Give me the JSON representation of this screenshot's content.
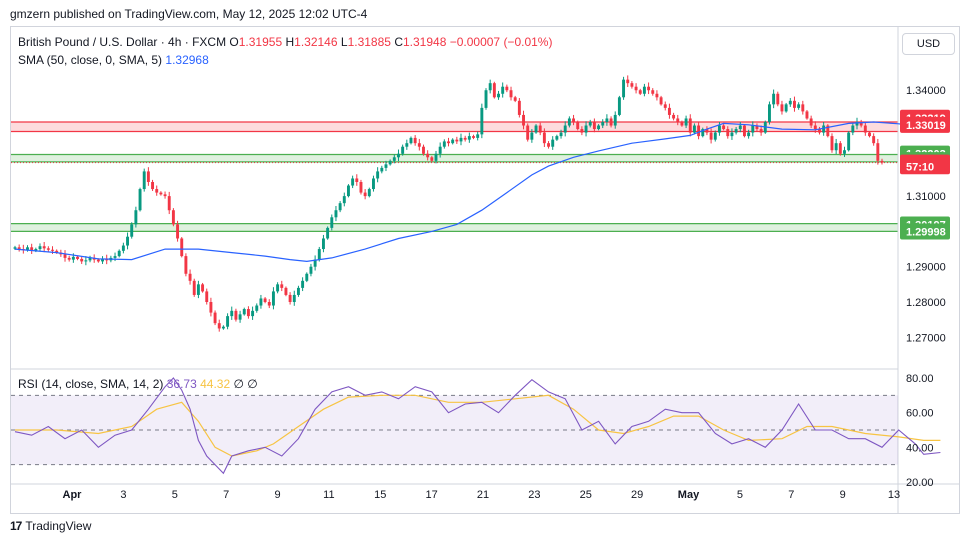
{
  "header": {
    "publisher": "gmzern published on TradingView.com, May 12, 2025 12:02 UTC-4"
  },
  "legend": {
    "symbol": "British Pound / U.S. Dollar · 4h · FXCM",
    "o_label": "O",
    "o": "1.31955",
    "h_label": "H",
    "h": "1.32146",
    "l_label": "L",
    "l": "1.31885",
    "c_label": "C",
    "c": "1.31948",
    "change": "−0.00007 (−0.01%)",
    "sma_label": "SMA (50, close, 0, SMA, 5)",
    "sma_value": "1.32968",
    "rsi_label": "RSI (14, close, SMA, 14, 2)",
    "rsi_value": "36.73",
    "rsi_sma_value": "44.32",
    "rsi_extra": "∅ ∅"
  },
  "currency_button": "USD",
  "footer": {
    "brand": "TradingView"
  },
  "colors": {
    "up": "#089981",
    "down": "#f23645",
    "sma": "#2962ff",
    "rsi": "#7e57c2",
    "rsi_sma": "#f7c443"
  },
  "chart_data": {
    "type": "candlestick",
    "symbol": "GBPUSD",
    "timeframe": "4h",
    "price_ylim": [
      1.263,
      1.348
    ],
    "price_ticks": [
      "1.34000",
      "1.31000",
      "1.29000",
      "1.28000",
      "1.27000"
    ],
    "x_ticks": [
      "Apr",
      "3",
      "5",
      "7",
      "9",
      "11",
      "15",
      "17",
      "21",
      "23",
      "25",
      "29",
      "May",
      "5",
      "7",
      "9",
      "13"
    ],
    "price_labels": [
      {
        "text": "1.33219",
        "value": 1.33219,
        "color": "#f23645"
      },
      {
        "text": "1.33019",
        "value": 1.33019,
        "color": "#f23645"
      },
      {
        "text": "1.32203",
        "value": 1.32203,
        "color": "#4caf50"
      },
      {
        "text": "1.32019",
        "value": 1.32019,
        "color": "#4caf50"
      },
      {
        "text": "1.31948",
        "value": 1.31948,
        "color": "#f23645"
      },
      {
        "text": "57:10",
        "value": 1.31845,
        "color": "#f23645"
      },
      {
        "text": "1.30197",
        "value": 1.30197,
        "color": "#4caf50"
      },
      {
        "text": "1.29998",
        "value": 1.29998,
        "color": "#4caf50"
      }
    ],
    "zones": [
      {
        "from": 1.3283,
        "to": 1.331,
        "color": "red"
      },
      {
        "from": 1.3197,
        "to": 1.3218,
        "color": "green"
      },
      {
        "from": 1.3,
        "to": 1.3022,
        "color": "green"
      }
    ],
    "close_path": [
      1.2955,
      1.295,
      1.2948,
      1.2955,
      1.2945,
      1.295,
      1.2958,
      1.2952,
      1.2948,
      1.2945,
      1.294,
      1.2935,
      1.2925,
      1.292,
      1.2928,
      1.2922,
      1.2915,
      1.2918,
      1.2925,
      1.292,
      1.2915,
      1.2922,
      1.2918,
      1.2925,
      1.293,
      1.2945,
      1.296,
      1.2985,
      1.302,
      1.306,
      1.312,
      1.317,
      1.314,
      1.312,
      1.311,
      1.3105,
      1.31,
      1.306,
      1.302,
      1.298,
      1.293,
      1.288,
      1.286,
      1.282,
      1.285,
      1.283,
      1.28,
      1.277,
      1.274,
      1.2725,
      1.273,
      1.276,
      1.2775,
      1.275,
      1.2765,
      1.278,
      1.276,
      1.2775,
      1.279,
      1.281,
      1.28,
      1.279,
      1.283,
      1.285,
      1.284,
      1.282,
      1.28,
      1.282,
      1.284,
      1.286,
      1.288,
      1.29,
      1.292,
      1.295,
      1.298,
      1.301,
      1.304,
      1.306,
      1.308,
      1.31,
      1.313,
      1.315,
      1.314,
      1.311,
      1.31,
      1.312,
      1.315,
      1.317,
      1.318,
      1.319,
      1.32,
      1.321,
      1.322,
      1.324,
      1.325,
      1.3265,
      1.325,
      1.324,
      1.322,
      1.321,
      1.32,
      1.322,
      1.324,
      1.3255,
      1.325,
      1.326,
      1.3255,
      1.3265,
      1.326,
      1.327,
      1.3265,
      1.3275,
      1.335,
      1.34,
      1.342,
      1.338,
      1.339,
      1.341,
      1.34,
      1.338,
      1.337,
      1.333,
      1.33,
      1.326,
      1.328,
      1.33,
      1.328,
      1.325,
      1.324,
      1.326,
      1.327,
      1.328,
      1.33,
      1.332,
      1.331,
      1.329,
      1.328,
      1.33,
      1.331,
      1.329,
      1.33,
      1.331,
      1.332,
      1.33,
      1.333,
      1.338,
      1.343,
      1.342,
      1.341,
      1.34,
      1.339,
      1.341,
      1.34,
      1.339,
      1.338,
      1.336,
      1.335,
      1.333,
      1.332,
      1.331,
      1.33,
      1.332,
      1.328,
      1.33,
      1.327,
      1.329,
      1.328,
      1.326,
      1.328,
      1.33,
      1.329,
      1.327,
      1.328,
      1.329,
      1.33,
      1.327,
      1.328,
      1.33,
      1.329,
      1.328,
      1.331,
      1.336,
      1.339,
      1.336,
      1.334,
      1.336,
      1.337,
      1.335,
      1.336,
      1.334,
      1.332,
      1.33,
      1.329,
      1.328,
      1.33,
      1.327,
      1.323,
      1.325,
      1.322,
      1.323,
      1.328,
      1.33,
      1.331,
      1.33,
      1.328,
      1.327,
      1.325,
      1.32,
      1.3195
    ],
    "sma": [
      [
        0,
        1.295
      ],
      [
        10,
        1.294
      ],
      [
        20,
        1.2922
      ],
      [
        28,
        1.292
      ],
      [
        36,
        1.295
      ],
      [
        44,
        1.295
      ],
      [
        52,
        1.294
      ],
      [
        60,
        1.293
      ],
      [
        66,
        1.292
      ],
      [
        70,
        1.2915
      ],
      [
        76,
        1.2925
      ],
      [
        84,
        1.295
      ],
      [
        92,
        1.298
      ],
      [
        100,
        1.3
      ],
      [
        106,
        1.302
      ],
      [
        112,
        1.306
      ],
      [
        118,
        1.311
      ],
      [
        124,
        1.316
      ],
      [
        128,
        1.3185
      ],
      [
        134,
        1.321
      ],
      [
        140,
        1.3228
      ],
      [
        148,
        1.325
      ],
      [
        156,
        1.3262
      ],
      [
        162,
        1.3272
      ],
      [
        166,
        1.329
      ],
      [
        170,
        1.3306
      ],
      [
        176,
        1.3302
      ],
      [
        184,
        1.329
      ],
      [
        192,
        1.3288
      ],
      [
        200,
        1.3306
      ],
      [
        206,
        1.331
      ],
      [
        212,
        1.3305
      ],
      [
        218,
        1.3296
      ],
      [
        223,
        1.3288
      ]
    ],
    "rsi_ylim": [
      20,
      80
    ],
    "rsi_ticks": [
      "80.00",
      "60.00",
      "40.00",
      "20.00"
    ],
    "rsi_bands": {
      "upper": 70,
      "middle": 50,
      "lower": 30
    },
    "rsi": [
      [
        0,
        49
      ],
      [
        4,
        47
      ],
      [
        8,
        52
      ],
      [
        12,
        45
      ],
      [
        16,
        50
      ],
      [
        20,
        40
      ],
      [
        24,
        47
      ],
      [
        28,
        50
      ],
      [
        32,
        62
      ],
      [
        36,
        75
      ],
      [
        38,
        80
      ],
      [
        40,
        73
      ],
      [
        42,
        62
      ],
      [
        44,
        44
      ],
      [
        46,
        35
      ],
      [
        48,
        30
      ],
      [
        50,
        25
      ],
      [
        52,
        35
      ],
      [
        56,
        38
      ],
      [
        60,
        40
      ],
      [
        64,
        35
      ],
      [
        68,
        45
      ],
      [
        72,
        62
      ],
      [
        76,
        72
      ],
      [
        80,
        75
      ],
      [
        84,
        70
      ],
      [
        88,
        72
      ],
      [
        92,
        68
      ],
      [
        96,
        75
      ],
      [
        100,
        72
      ],
      [
        104,
        60
      ],
      [
        108,
        65
      ],
      [
        112,
        66
      ],
      [
        116,
        60
      ],
      [
        120,
        70
      ],
      [
        124,
        79
      ],
      [
        128,
        72
      ],
      [
        132,
        68
      ],
      [
        136,
        50
      ],
      [
        140,
        55
      ],
      [
        144,
        42
      ],
      [
        148,
        52
      ],
      [
        152,
        55
      ],
      [
        156,
        62
      ],
      [
        160,
        60
      ],
      [
        164,
        60
      ],
      [
        168,
        48
      ],
      [
        172,
        42
      ],
      [
        176,
        45
      ],
      [
        180,
        40
      ],
      [
        184,
        50
      ],
      [
        188,
        65
      ],
      [
        192,
        50
      ],
      [
        196,
        50
      ],
      [
        200,
        45
      ],
      [
        204,
        45
      ],
      [
        208,
        40
      ],
      [
        212,
        50
      ],
      [
        216,
        42
      ],
      [
        218,
        36
      ],
      [
        222,
        37
      ]
    ],
    "rsi_sma": [
      [
        0,
        50
      ],
      [
        10,
        50
      ],
      [
        20,
        48
      ],
      [
        28,
        52
      ],
      [
        34,
        62
      ],
      [
        40,
        66
      ],
      [
        44,
        55
      ],
      [
        48,
        40
      ],
      [
        52,
        35
      ],
      [
        58,
        38
      ],
      [
        62,
        42
      ],
      [
        68,
        52
      ],
      [
        74,
        62
      ],
      [
        80,
        69
      ],
      [
        88,
        70
      ],
      [
        96,
        70
      ],
      [
        104,
        66
      ],
      [
        112,
        66
      ],
      [
        120,
        68
      ],
      [
        128,
        70
      ],
      [
        134,
        62
      ],
      [
        140,
        50
      ],
      [
        146,
        48
      ],
      [
        152,
        52
      ],
      [
        158,
        58
      ],
      [
        164,
        58
      ],
      [
        170,
        50
      ],
      [
        176,
        44
      ],
      [
        184,
        45
      ],
      [
        190,
        52
      ],
      [
        196,
        52
      ],
      [
        204,
        48
      ],
      [
        212,
        46
      ],
      [
        218,
        44
      ],
      [
        222,
        44
      ]
    ]
  }
}
